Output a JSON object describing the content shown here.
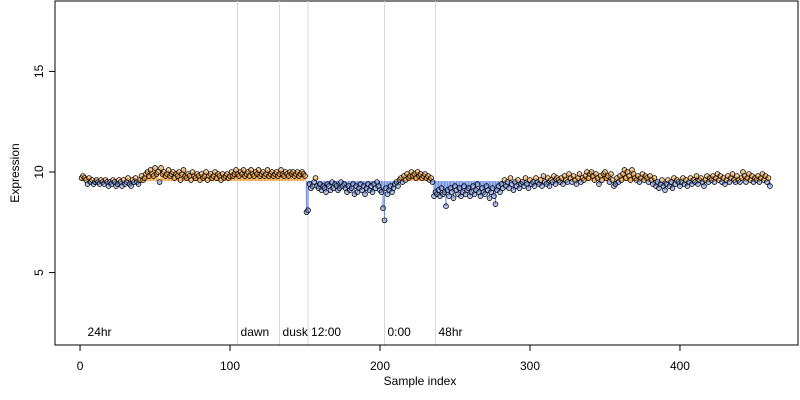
{
  "chart_data": {
    "type": "scatter",
    "xlabel": "Sample index",
    "ylabel": "Expression",
    "xlim": [
      -16.7,
      478.7
    ],
    "ylim": [
      1.4,
      18.5
    ],
    "xticks": [
      0,
      100,
      200,
      300,
      400
    ],
    "yticks": [
      5,
      10,
      15
    ],
    "baseline": 9.55,
    "colors": {
      "above": "#f0a040",
      "below": "#6f8fe0",
      "point_edge": "#000000",
      "vline": "#d8d8d8",
      "annotation": "#aaaaaa"
    },
    "annotations": [
      {
        "x": 3,
        "y": 2,
        "label": "24hr",
        "line": false
      },
      {
        "x": 105,
        "y": 2,
        "label": "dawn",
        "line": true
      },
      {
        "x": 133,
        "y": 2,
        "label": "dusk",
        "line": true
      },
      {
        "x": 152,
        "y": 2,
        "label": "12:00",
        "line": true
      },
      {
        "x": 203,
        "y": 2,
        "label": "0:00",
        "line": true
      },
      {
        "x": 237,
        "y": 2,
        "label": "48hr",
        "line": true
      }
    ],
    "x": [
      1,
      2,
      3,
      4,
      5,
      6,
      7,
      8,
      9,
      10,
      11,
      12,
      13,
      14,
      15,
      16,
      17,
      18,
      19,
      20,
      21,
      22,
      23,
      24,
      25,
      26,
      27,
      28,
      29,
      30,
      31,
      32,
      33,
      34,
      35,
      36,
      37,
      38,
      39,
      40,
      41,
      42,
      43,
      44,
      45,
      46,
      47,
      48,
      49,
      50,
      51,
      52,
      53,
      54,
      55,
      56,
      57,
      58,
      59,
      60,
      61,
      62,
      63,
      64,
      65,
      66,
      67,
      68,
      69,
      70,
      71,
      72,
      73,
      74,
      75,
      76,
      77,
      78,
      79,
      80,
      81,
      82,
      83,
      84,
      85,
      86,
      87,
      88,
      89,
      90,
      91,
      92,
      93,
      94,
      95,
      96,
      97,
      98,
      99,
      100,
      101,
      102,
      103,
      104,
      105,
      106,
      107,
      108,
      109,
      110,
      111,
      112,
      113,
      114,
      115,
      116,
      117,
      118,
      119,
      120,
      121,
      122,
      123,
      124,
      125,
      126,
      127,
      128,
      129,
      130,
      131,
      132,
      133,
      134,
      135,
      136,
      137,
      138,
      139,
      140,
      141,
      142,
      143,
      144,
      145,
      146,
      147,
      148,
      149,
      150,
      151,
      152,
      153,
      154,
      155,
      156,
      157,
      158,
      159,
      160,
      161,
      162,
      163,
      164,
      165,
      166,
      167,
      168,
      169,
      170,
      171,
      172,
      173,
      174,
      175,
      176,
      177,
      178,
      179,
      180,
      181,
      182,
      183,
      184,
      185,
      186,
      187,
      188,
      189,
      190,
      191,
      192,
      193,
      194,
      195,
      196,
      197,
      198,
      199,
      200,
      201,
      202,
      203,
      204,
      205,
      206,
      207,
      208,
      209,
      210,
      211,
      212,
      213,
      214,
      215,
      216,
      217,
      218,
      219,
      220,
      221,
      222,
      223,
      224,
      225,
      226,
      227,
      228,
      229,
      230,
      231,
      232,
      233,
      234,
      235,
      236,
      237,
      238,
      239,
      240,
      241,
      242,
      243,
      244,
      245,
      246,
      247,
      248,
      249,
      250,
      251,
      252,
      253,
      254,
      255,
      256,
      257,
      258,
      259,
      260,
      261,
      262,
      263,
      264,
      265,
      266,
      267,
      268,
      269,
      270,
      271,
      272,
      273,
      274,
      275,
      276,
      277,
      278,
      279,
      280,
      281,
      282,
      283,
      284,
      285,
      286,
      287,
      288,
      289,
      290,
      291,
      292,
      293,
      294,
      295,
      296,
      297,
      298,
      299,
      300,
      301,
      302,
      303,
      304,
      305,
      306,
      307,
      308,
      309,
      310,
      311,
      312,
      313,
      314,
      315,
      316,
      317,
      318,
      319,
      320,
      321,
      322,
      323,
      324,
      325,
      326,
      327,
      328,
      329,
      330,
      331,
      332,
      333,
      334,
      335,
      336,
      337,
      338,
      339,
      340,
      341,
      342,
      343,
      344,
      345,
      346,
      347,
      348,
      349,
      350,
      351,
      352,
      353,
      354,
      355,
      356,
      357,
      358,
      359,
      360,
      361,
      362,
      363,
      364,
      365,
      366,
      367,
      368,
      369,
      370,
      371,
      372,
      373,
      374,
      375,
      376,
      377,
      378,
      379,
      380,
      381,
      382,
      383,
      384,
      385,
      386,
      387,
      388,
      389,
      390,
      391,
      392,
      393,
      394,
      395,
      396,
      397,
      398,
      399,
      400,
      401,
      402,
      403,
      404,
      405,
      406,
      407,
      408,
      409,
      410,
      411,
      412,
      413,
      414,
      415,
      416,
      417,
      418,
      419,
      420,
      421,
      422,
      423,
      424,
      425,
      426,
      427,
      428,
      429,
      430,
      431,
      432,
      433,
      434,
      435,
      436,
      437,
      438,
      439,
      440,
      441,
      442,
      443,
      444,
      445,
      446,
      447,
      448,
      449,
      450,
      451,
      452,
      453,
      454,
      455,
      456,
      457,
      458,
      459,
      460
    ],
    "values": [
      9.7,
      9.8,
      9.7,
      9.6,
      9.4,
      9.7,
      9.5,
      9.6,
      9.4,
      9.5,
      9.6,
      9.5,
      9.4,
      9.6,
      9.5,
      9.4,
      9.6,
      9.5,
      9.3,
      9.5,
      9.4,
      9.6,
      9.5,
      9.3,
      9.4,
      9.6,
      9.5,
      9.3,
      9.6,
      9.4,
      9.5,
      9.7,
      9.4,
      9.3,
      9.6,
      9.5,
      9.7,
      9.5,
      9.4,
      9.6,
      9.8,
      9.6,
      9.7,
      9.9,
      10.0,
      9.8,
      10.1,
      9.9,
      9.8,
      10.2,
      9.9,
      10.0,
      9.5,
      10.2,
      9.9,
      10.0,
      9.8,
      9.9,
      10.1,
      9.8,
      9.9,
      10.0,
      9.7,
      9.9,
      9.8,
      10.0,
      9.6,
      9.9,
      10.1,
      9.8,
      9.7,
      9.9,
      9.8,
      9.6,
      10.0,
      9.8,
      9.7,
      9.9,
      9.8,
      9.6,
      9.9,
      9.7,
      9.8,
      10.0,
      9.6,
      9.8,
      9.9,
      9.7,
      9.8,
      10.0,
      9.7,
      9.9,
      9.8,
      9.6,
      9.9,
      9.7,
      9.8,
      9.9,
      9.7,
      9.8,
      10.0,
      9.8,
      9.9,
      10.1,
      9.9,
      9.8,
      10.0,
      9.9,
      10.1,
      9.8,
      9.9,
      10.0,
      9.8,
      10.1,
      9.9,
      9.8,
      10.0,
      9.9,
      10.1,
      9.8,
      9.9,
      10.0,
      9.8,
      9.9,
      10.1,
      9.8,
      9.9,
      10.0,
      9.8,
      9.9,
      10.0,
      9.8,
      9.9,
      10.1,
      9.9,
      9.8,
      10.0,
      9.9,
      9.8,
      10.0,
      9.9,
      10.0,
      9.8,
      9.9,
      10.0,
      9.8,
      9.9,
      10.0,
      9.9,
      9.8,
      8.0,
      8.1,
      9.4,
      9.2,
      9.3,
      9.5,
      9.7,
      9.3,
      9.2,
      9.4,
      9.1,
      9.3,
      9.2,
      9.0,
      9.4,
      9.3,
      9.1,
      9.5,
      9.2,
      9.4,
      9.3,
      9.1,
      9.2,
      9.5,
      9.3,
      9.4,
      9.2,
      9.0,
      9.3,
      9.1,
      9.2,
      9.4,
      8.9,
      9.3,
      9.0,
      9.2,
      9.4,
      9.1,
      9.3,
      8.9,
      9.2,
      9.4,
      9.1,
      9.3,
      9.0,
      9.4,
      9.2,
      9.5,
      9.3,
      9.1,
      9.0,
      8.2,
      7.6,
      9.2,
      8.9,
      9.1,
      9.3,
      9.0,
      9.2,
      9.4,
      9.5,
      9.3,
      9.6,
      9.7,
      9.5,
      9.8,
      9.6,
      9.9,
      9.7,
      9.8,
      10.0,
      9.8,
      9.9,
      9.7,
      10.0,
      9.8,
      9.9,
      9.7,
      9.8,
      9.9,
      9.7,
      9.8,
      9.6,
      9.7,
      9.5,
      8.8,
      9.0,
      8.9,
      9.1,
      8.8,
      9.2,
      8.9,
      9.0,
      8.3,
      9.1,
      8.8,
      9.2,
      9.0,
      8.7,
      9.3,
      9.1,
      8.9,
      9.2,
      8.8,
      9.0,
      9.3,
      8.9,
      9.1,
      9.2,
      8.8,
      9.0,
      9.3,
      8.9,
      9.1,
      9.4,
      9.0,
      8.8,
      9.2,
      9.0,
      8.9,
      9.3,
      9.1,
      8.7,
      9.0,
      9.2,
      8.8,
      8.4,
      9.1,
      9.3,
      9.0,
      9.4,
      9.2,
      9.6,
      9.3,
      9.5,
      9.2,
      9.7,
      9.4,
      9.1,
      9.5,
      9.3,
      9.6,
      9.2,
      9.4,
      9.5,
      9.3,
      9.7,
      9.4,
      9.2,
      9.6,
      9.4,
      9.5,
      9.3,
      9.7,
      9.5,
      9.4,
      9.6,
      9.3,
      9.8,
      9.5,
      9.4,
      9.7,
      9.3,
      9.6,
      9.5,
      9.8,
      9.4,
      9.7,
      9.6,
      9.5,
      9.7,
      9.4,
      9.8,
      9.6,
      9.5,
      9.9,
      9.7,
      9.5,
      9.8,
      9.6,
      9.4,
      9.7,
      9.9,
      9.5,
      9.7,
      9.6,
      9.8,
      10.0,
      9.7,
      9.9,
      10.0,
      9.8,
      9.6,
      9.9,
      9.7,
      9.4,
      9.8,
      9.6,
      9.9,
      10.0,
      9.7,
      9.8,
      9.5,
      9.9,
      9.6,
      9.3,
      9.4,
      9.7,
      9.5,
      9.8,
      9.6,
      9.9,
      10.1,
      9.7,
      10.0,
      9.8,
      9.6,
      10.1,
      9.9,
      9.7,
      9.6,
      9.8,
      9.5,
      9.7,
      9.9,
      9.6,
      9.8,
      9.7,
      9.5,
      9.8,
      9.6,
      9.4,
      9.7,
      9.3,
      9.5,
      9.2,
      9.4,
      9.6,
      9.3,
      9.1,
      9.4,
      9.6,
      9.3,
      9.5,
      9.2,
      9.7,
      9.4,
      9.6,
      9.5,
      9.3,
      9.5,
      9.7,
      9.4,
      9.6,
      9.3,
      9.5,
      9.7,
      9.4,
      9.6,
      9.5,
      9.8,
      9.4,
      9.6,
      9.7,
      9.5,
      9.3,
      9.6,
      9.8,
      9.5,
      9.7,
      9.6,
      9.8,
      9.5,
      9.7,
      9.9,
      9.6,
      9.8,
      9.5,
      9.7,
      9.4,
      9.6,
      9.8,
      9.5,
      9.7,
      9.9,
      9.6,
      9.5,
      9.8,
      9.6,
      9.5,
      9.7,
      10.0,
      9.8,
      9.5,
      9.7,
      9.9,
      9.6,
      9.8,
      9.5,
      9.7,
      9.6,
      9.8,
      9.5,
      9.7,
      9.9,
      9.6,
      9.8,
      9.5,
      9.7,
      9.3
    ]
  }
}
